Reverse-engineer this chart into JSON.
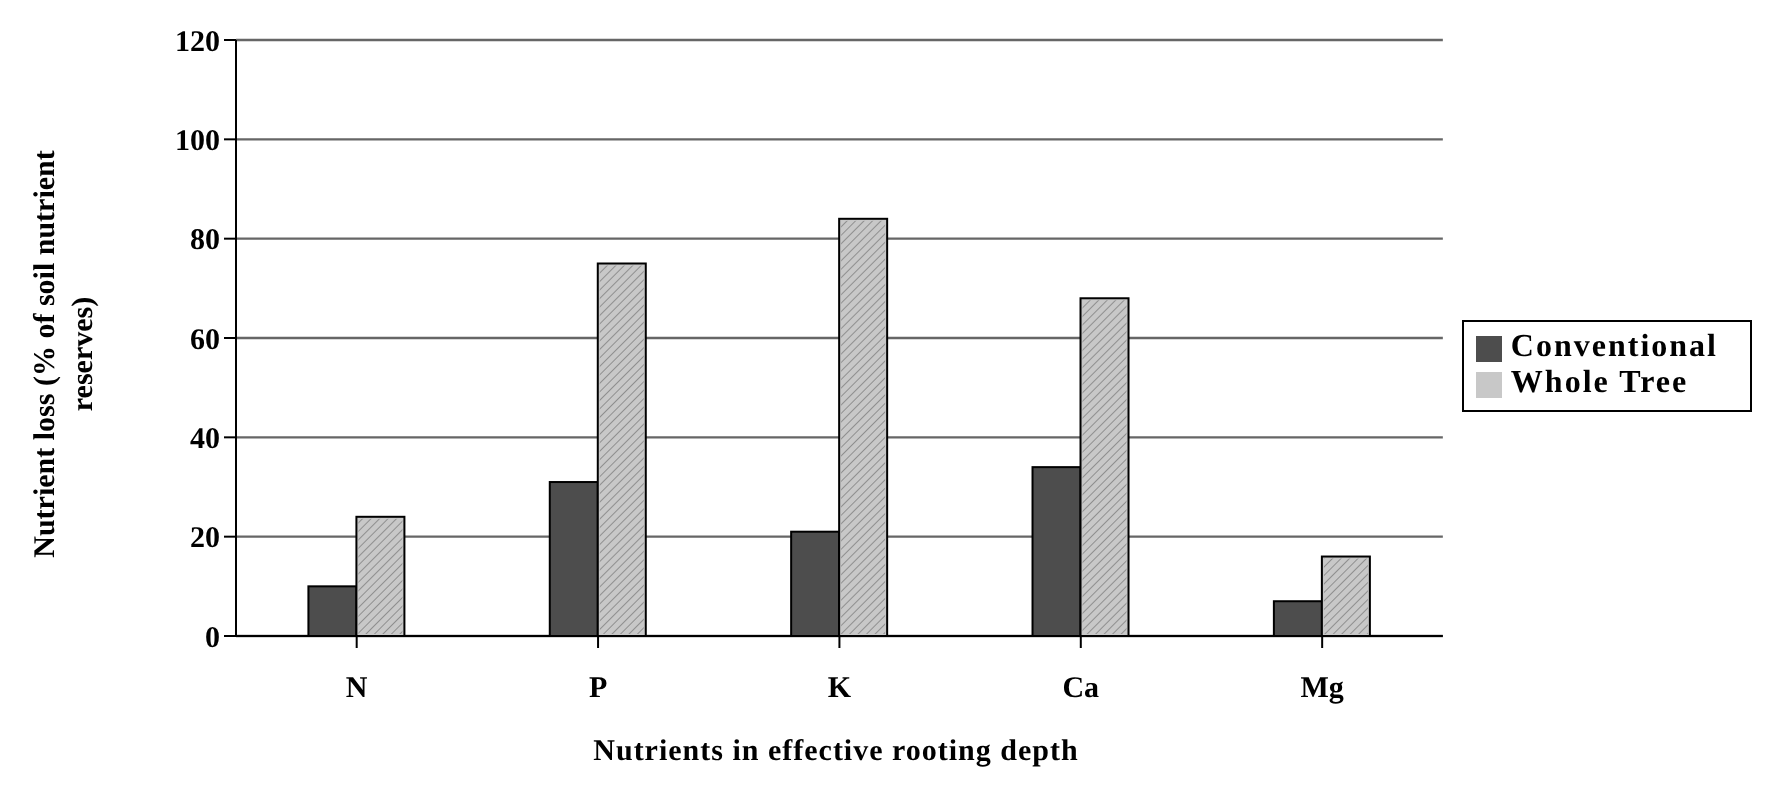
{
  "chart_data": {
    "type": "bar",
    "xlabel": "Nutrients in effective rooting depth",
    "ylabel": "Nutrient loss (% of soil nutrient reserves)",
    "categories": [
      "N",
      "P",
      "K",
      "Ca",
      "Mg"
    ],
    "series": [
      {
        "name": "Conventional",
        "color": "#4d4d4d",
        "values": [
          10,
          31,
          21,
          34,
          7
        ]
      },
      {
        "name": "Whole Tree",
        "color": "#c8c8c8",
        "values": [
          24,
          75,
          84,
          68,
          16
        ]
      }
    ],
    "ylim": [
      0,
      120
    ],
    "yticks": [
      0,
      20,
      40,
      60,
      80,
      100,
      120
    ],
    "grid": "y",
    "legend": "right"
  }
}
